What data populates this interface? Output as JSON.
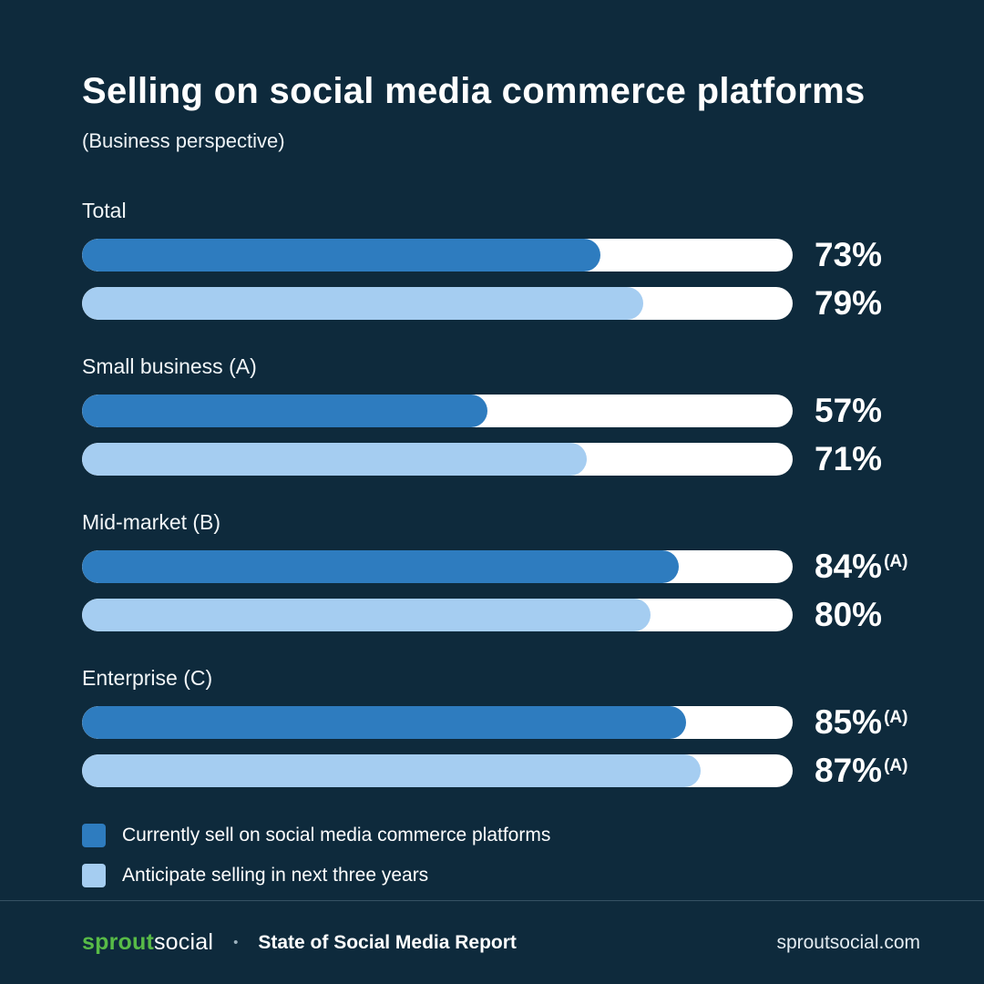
{
  "title": "Selling on social media commerce platforms",
  "subtitle": "(Business perspective)",
  "chart_data": {
    "type": "bar",
    "orientation": "horizontal",
    "unit": "%",
    "xlim": [
      0,
      100
    ],
    "grid": false,
    "legend_position": "bottom-left",
    "categories": [
      "Total",
      "Small business (A)",
      "Mid-market (B)",
      "Enterprise (C)"
    ],
    "series": [
      {
        "name": "Currently sell on social media commerce platforms",
        "color": "#2e7cbf",
        "values": [
          73,
          57,
          84,
          85
        ],
        "annotations": [
          "",
          "",
          "(A)",
          "(A)"
        ]
      },
      {
        "name": "Anticipate selling in next three years",
        "color": "#a5cdf1",
        "values": [
          79,
          71,
          80,
          87
        ],
        "annotations": [
          "",
          "",
          "",
          "(A)"
        ]
      }
    ]
  },
  "legend": [
    {
      "label": "Currently sell on social media commerce platforms"
    },
    {
      "label": "Anticipate selling in next three years"
    }
  ],
  "footer": {
    "brand_sprout": "sprout",
    "brand_social": "social",
    "separator": "•",
    "report_name": "State of Social Media Report",
    "website": "sproutsocial.com"
  },
  "colors": {
    "background": "#0e2a3c",
    "bar_track": "#ffffff",
    "series_current": "#2e7cbf",
    "series_anticipate": "#a5cdf1",
    "brand_green": "#58bb47",
    "text": "#ffffff"
  }
}
